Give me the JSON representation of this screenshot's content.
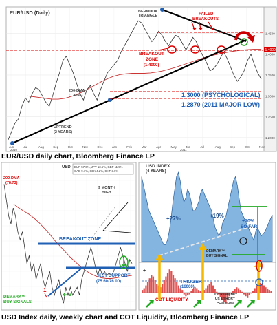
{
  "captions": {
    "top": "EUR/USD daily chart, Bloomberg Finance LP",
    "bottom": "USD Index daily, weekly chart and COT Liquidity, Bloomberg Finance LP"
  },
  "colors": {
    "price": "#333333",
    "dma": "#cc3333",
    "red_annot": "#dd0000",
    "blue_annot": "#1f5fb4",
    "trend": "#000000",
    "area_fill": "#5b9bd5",
    "cot_fill": "#e05050",
    "arrow_orange": "#f5b800",
    "arrow_green": "#22aa22",
    "green_line": "#22aa22"
  },
  "chart_data": [
    {
      "id": "eurusd_daily",
      "type": "line",
      "title": "EUR/USD (Daily)",
      "x_ticks": [
        "Jun",
        "Jul",
        "Aug",
        "Sep",
        "Oct",
        "Nov",
        "Dec",
        "Jan",
        "Feb",
        "Mar",
        "Apr",
        "May",
        "Jun",
        "Jul",
        "Aug",
        "Sep",
        "Oct",
        "Nov"
      ],
      "year_labels": [
        "2010",
        "2011"
      ],
      "y_ticks": [
        "1.4500",
        "1.4000",
        "1.3500",
        "1.3000",
        "1.2500",
        "1.2000"
      ],
      "ylim": [
        1.18,
        1.51
      ],
      "series": [
        {
          "values": [
            1.195,
            1.215,
            1.235,
            1.245,
            1.275,
            1.295,
            1.285,
            1.305,
            1.32,
            1.315,
            1.3,
            1.285,
            1.275,
            1.3,
            1.33,
            1.355,
            1.385,
            1.395,
            1.375,
            1.355,
            1.33,
            1.305,
            1.29,
            1.315,
            1.325,
            1.305,
            1.29,
            1.315,
            1.335,
            1.355,
            1.365,
            1.375,
            1.385,
            1.405,
            1.42,
            1.435,
            1.45,
            1.465,
            1.48,
            1.475,
            1.46,
            1.445,
            1.43,
            1.44,
            1.455,
            1.445,
            1.43,
            1.42,
            1.435,
            1.445,
            1.44,
            1.425,
            1.41,
            1.425,
            1.44,
            1.43,
            1.41,
            1.395,
            1.38,
            1.36,
            1.365,
            1.375,
            1.39,
            1.405,
            1.39,
            1.37,
            1.35,
            1.335,
            1.345,
            1.36,
            1.385,
            1.4,
            1.375,
            1.355,
            1.34
          ]
        },
        {
          "name": "200-DMA",
          "values": [
            1.3,
            1.298,
            1.296,
            1.294,
            1.292,
            1.292,
            1.294,
            1.298,
            1.303,
            1.31,
            1.318,
            1.326,
            1.334,
            1.341,
            1.347,
            1.351,
            1.353,
            1.354,
            1.354,
            1.354,
            1.355,
            1.357,
            1.36,
            1.364,
            1.368,
            1.373,
            1.378,
            1.383,
            1.388,
            1.393,
            1.397,
            1.4,
            1.403,
            1.406,
            1.408,
            1.41,
            1.411,
            1.412,
            1.412
          ]
        }
      ],
      "annotations": [
        {
          "text": "BERMUDA",
          "color": "dark"
        },
        {
          "text": "TRIANGLE",
          "color": "dark"
        },
        {
          "text": "FAILED",
          "color": "red"
        },
        {
          "text": "BREAKOUTS",
          "color": "red"
        },
        {
          "text": "BREAKOUT",
          "color": "red"
        },
        {
          "text": "ZONE",
          "color": "red"
        },
        {
          "text": "(1.4000)",
          "color": "red"
        },
        {
          "text": "200-DMA",
          "color": "dark"
        },
        {
          "text": "(1.4096)",
          "color": "dark"
        },
        {
          "text": "UPTREND",
          "color": "dark"
        },
        {
          "text": "(2 YEARS)",
          "color": "dark"
        },
        {
          "text": "1.3000 (PSYCHOLOGICAL)",
          "color": "blue"
        },
        {
          "text": "1.2870 (2011 MAJOR LOW)",
          "color": "blue"
        }
      ],
      "levels": [
        1.4,
        1.3,
        1.287
      ]
    },
    {
      "id": "usd_daily",
      "type": "line",
      "title": "USD",
      "box_lines": [
        "EUR 57.6%, JPY 13.6%, GBP 11.9%",
        "CAD 9.1%, SEK 4.2%, CHF 3.6%"
      ],
      "series": [
        {
          "values": [
            88,
            86,
            84,
            83,
            85,
            84,
            82,
            81,
            82,
            80,
            78,
            79,
            77,
            78,
            76,
            77,
            78,
            76,
            75,
            76,
            77,
            75,
            74,
            75,
            76,
            74,
            73,
            75,
            74,
            75,
            74,
            74.5,
            75,
            74,
            76,
            77,
            78,
            79,
            80,
            79,
            77.5,
            76.5,
            77.5,
            76.5,
            77,
            76.5,
            76.8,
            76.5,
            77,
            78,
            79,
            80,
            79,
            78,
            77,
            78.5,
            78
          ]
        },
        {
          "name": "200-DMA",
          "values": [
            85.5,
            85,
            84.6,
            84.2,
            83.7,
            83.1,
            82.4,
            81.7,
            80.9,
            80.2,
            79.5,
            78.8,
            78.2,
            77.6,
            77.1,
            76.7,
            76.4,
            76.2,
            76.1,
            76.1,
            76.2,
            76.3,
            76.4,
            76.5
          ]
        }
      ],
      "annotations": [
        {
          "text": "200-DMA",
          "color": "red"
        },
        {
          "text": "(78.73)",
          "color": "red"
        },
        {
          "text": "9 MONTH",
          "color": "dark"
        },
        {
          "text": "HIGH",
          "color": "dark"
        },
        {
          "text": "BREAKOUT ZONE",
          "color": "blue"
        },
        {
          "text": "KEY SUPPORT",
          "color": "blue"
        },
        {
          "text": "(75.60-76.00)",
          "color": "blue"
        },
        {
          "text": "DEMARK™",
          "color": "green"
        },
        {
          "text": "BUY SIGNALS",
          "color": "green"
        },
        {
          "text": "1",
          "color": "red"
        },
        {
          "text": "9",
          "color": "green"
        }
      ]
    },
    {
      "id": "usd_index_weekly",
      "type": "area",
      "title": "USD INDEX",
      "subtitle": "(4 YEARS)",
      "series": [
        {
          "values": [
            88,
            86,
            84,
            82,
            80,
            79,
            78,
            77,
            76,
            75,
            74,
            73,
            72,
            72,
            73,
            75,
            78,
            82,
            85,
            88,
            89,
            87,
            84,
            82,
            83,
            85,
            84,
            82,
            80,
            80,
            81,
            82,
            84,
            85,
            84,
            83,
            82,
            81,
            80,
            78,
            76,
            75,
            74,
            75,
            77,
            78,
            79,
            81,
            83,
            85,
            87,
            88,
            86,
            83,
            80,
            79,
            78,
            77,
            76,
            75,
            74,
            73,
            75,
            76,
            75,
            74,
            74.5,
            75,
            76,
            77,
            78,
            79
          ]
        }
      ],
      "annotations": [
        {
          "text": "+27%",
          "color": "blue"
        },
        {
          "text": "+19%",
          "color": "blue"
        },
        {
          "text": "+10%",
          "color": "blue"
        },
        {
          "text": "SO FAR",
          "color": "blue"
        },
        {
          "text": "DEMARK™",
          "color": "dark"
        },
        {
          "text": "BUY SIGNAL",
          "color": "dark"
        }
      ]
    },
    {
      "id": "cot_liquidity",
      "type": "bar",
      "title": "COT LIQUIDITY",
      "series": [
        {
          "values": [
            3,
            5,
            8,
            12,
            16,
            20,
            18,
            14,
            10,
            8,
            6,
            10,
            14,
            18,
            22,
            26,
            24,
            20,
            16,
            12,
            8,
            5,
            3,
            -2,
            -4,
            -3,
            -2,
            2,
            4,
            6,
            5,
            3,
            2,
            1,
            3,
            5,
            8,
            10,
            12,
            8,
            4,
            1,
            -2,
            -5,
            -8,
            -10,
            -12,
            -8,
            -4,
            -1,
            2,
            4,
            6,
            5,
            3,
            1,
            -2,
            -4,
            -6,
            -3,
            -1,
            2,
            5,
            8,
            10,
            11,
            10,
            8,
            6,
            4,
            3,
            2
          ]
        }
      ],
      "annotations": [
        {
          "text": "TRIGGER",
          "color": "blue"
        },
        {
          "text": "(16000)",
          "color": "blue"
        },
        {
          "text": "EXTREME NET",
          "color": "dark"
        },
        {
          "text": "US $ SHORT",
          "color": "dark"
        },
        {
          "text": "POSITIONS",
          "color": "dark"
        },
        {
          "text": "+",
          "color": "dark"
        }
      ]
    }
  ]
}
